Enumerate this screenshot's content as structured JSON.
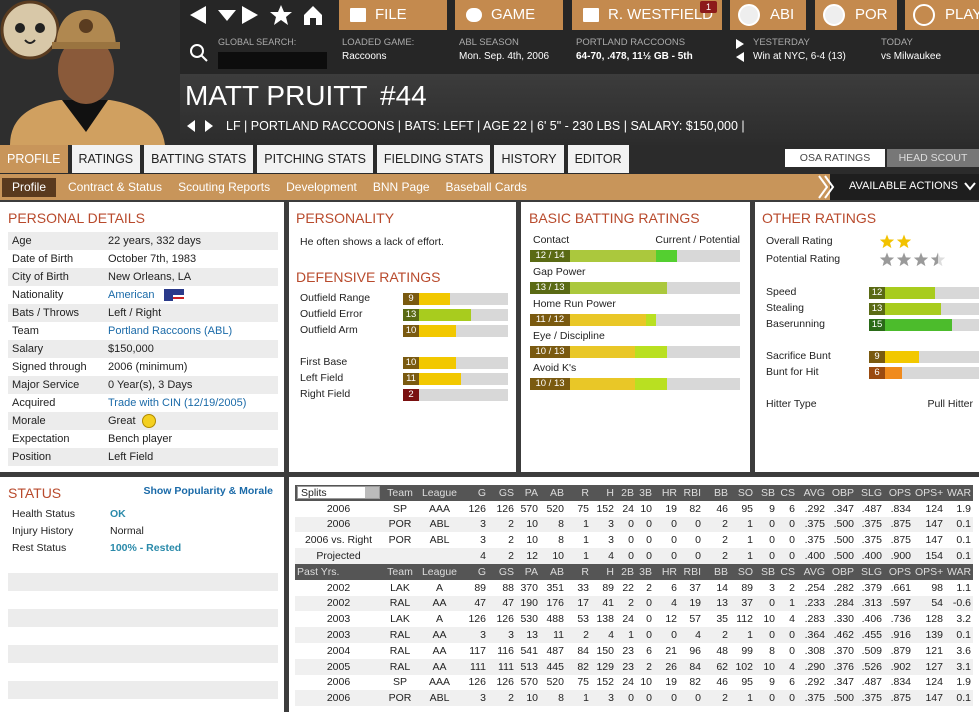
{
  "header": {
    "nav": [
      "FILE",
      "GAME",
      "R. WESTFIELD",
      "ABI",
      "POR",
      "PLAY"
    ],
    "badge": "1",
    "search_label": "GLOBAL SEARCH:",
    "info": [
      {
        "label": "LOADED GAME:",
        "value": "Raccoons"
      },
      {
        "label": "ABL SEASON",
        "value": "Mon. Sep. 4th, 2006"
      },
      {
        "label": "PORTLAND RACCOONS",
        "value": "64-70, .478, 11½ GB - 5th"
      },
      {
        "label": "YESTERDAY",
        "value": "Win at NYC, 6-4 (13)"
      },
      {
        "label": "TODAY",
        "value": "vs Milwaukee"
      }
    ]
  },
  "player": {
    "name": "MATT PRUITT",
    "number": "#44",
    "info": "LF | PORTLAND RACCOONS | BATS: LEFT | AGE 22 | 6' 5\" - 230 LBS | SALARY: $150,000 |"
  },
  "tabs": [
    "PROFILE",
    "RATINGS",
    "BATTING STATS",
    "PITCHING STATS",
    "FIELDING STATS",
    "HISTORY",
    "EDITOR"
  ],
  "scout_toggle": [
    "OSA RATINGS",
    "HEAD SCOUT"
  ],
  "subtabs": [
    "Profile",
    "Contract & Status",
    "Scouting Reports",
    "Development",
    "BNN Page",
    "Baseball Cards"
  ],
  "actions": "AVAILABLE ACTIONS",
  "personal_details": {
    "title": "PERSONAL DETAILS",
    "rows": [
      [
        "Age",
        "22 years, 332 days"
      ],
      [
        "Date of Birth",
        "October 7th, 1983"
      ],
      [
        "City of Birth",
        "New Orleans, LA"
      ],
      [
        "Nationality",
        "American"
      ],
      [
        "Bats / Throws",
        "Left / Right"
      ],
      [
        "Team",
        "Portland Raccoons (ABL)"
      ],
      [
        "Salary",
        "$150,000"
      ],
      [
        "Signed through",
        "2006 (minimum)"
      ],
      [
        "Major Service",
        "0 Year(s), 3 Days"
      ],
      [
        "Acquired",
        "Trade with CIN (12/19/2005)"
      ],
      [
        "Morale",
        "Great"
      ],
      [
        "Expectation",
        "Bench player"
      ],
      [
        "Position",
        "Left Field"
      ]
    ]
  },
  "personality": {
    "title": "PERSONALITY",
    "text": "He often shows a lack of effort."
  },
  "defensive": {
    "title": "DEFENSIVE RATINGS",
    "scale_max": 20,
    "groups": [
      [
        {
          "name": "Outfield Range",
          "value": 9
        },
        {
          "name": "Outfield Error",
          "value": 13
        },
        {
          "name": "Outfield Arm",
          "value": 10
        }
      ],
      [
        {
          "name": "First Base",
          "value": 10
        },
        {
          "name": "Left Field",
          "value": 11
        },
        {
          "name": "Right Field",
          "value": 2
        }
      ]
    ]
  },
  "batting": {
    "title": "BASIC BATTING RATINGS",
    "legend": "Current / Potential",
    "scale_max": 20,
    "rows": [
      {
        "name": "Contact",
        "current": 12,
        "potential": 14,
        "label": "12 / 14"
      },
      {
        "name": "Gap Power",
        "current": 13,
        "potential": 13,
        "label": "13 / 13"
      },
      {
        "name": "Home Run Power",
        "current": 11,
        "potential": 12,
        "label": "11 / 12"
      },
      {
        "name": "Eye / Discipline",
        "current": 10,
        "potential": 13,
        "label": "10 / 13"
      },
      {
        "name": "Avoid K's",
        "current": 10,
        "potential": 13,
        "label": "10 / 13"
      }
    ]
  },
  "other": {
    "title": "OTHER RATINGS",
    "scale_max": 20,
    "stars": [
      {
        "name": "Overall Rating",
        "value": 2,
        "color": "#f2c200"
      },
      {
        "name": "Potential Rating",
        "value": 3.5,
        "color": "#9a9a9a"
      }
    ],
    "groups": [
      [
        {
          "name": "Speed",
          "value": 12
        },
        {
          "name": "Stealing",
          "value": 13
        },
        {
          "name": "Baserunning",
          "value": 15
        }
      ],
      [
        {
          "name": "Sacrifice Bunt",
          "value": 9
        },
        {
          "name": "Bunt for Hit",
          "value": 6
        }
      ]
    ],
    "hitter_type": {
      "name": "Hitter Type",
      "value": "Pull Hitter"
    }
  },
  "status": {
    "title": "STATUS",
    "link": "Show Popularity & Morale",
    "rows": [
      [
        "Health Status",
        "OK"
      ],
      [
        "Injury History",
        "Normal"
      ],
      [
        "Rest Status",
        "100% - Rested"
      ]
    ]
  },
  "stats": {
    "columns": [
      "Splits",
      "Team",
      "League",
      "G",
      "GS",
      "PA",
      "AB",
      "R",
      "H",
      "2B",
      "3B",
      "HR",
      "RBI",
      "BB",
      "SO",
      "SB",
      "CS",
      "AVG",
      "OBP",
      "SLG",
      "OPS",
      "OPS+",
      "WAR"
    ],
    "rows": [
      [
        "2006",
        "SP",
        "AAA",
        "126",
        "126",
        "570",
        "520",
        "75",
        "152",
        "24",
        "10",
        "19",
        "82",
        "46",
        "95",
        "9",
        "6",
        ".292",
        ".347",
        ".487",
        ".834",
        "124",
        "1.9"
      ],
      [
        "2006",
        "POR",
        "ABL",
        "3",
        "2",
        "10",
        "8",
        "1",
        "3",
        "0",
        "0",
        "0",
        "0",
        "2",
        "1",
        "0",
        "0",
        ".375",
        ".500",
        ".375",
        ".875",
        "147",
        "0.1"
      ],
      [
        "2006 vs. Right",
        "POR",
        "ABL",
        "3",
        "2",
        "10",
        "8",
        "1",
        "3",
        "0",
        "0",
        "0",
        "0",
        "2",
        "1",
        "0",
        "0",
        ".375",
        ".500",
        ".375",
        ".875",
        "147",
        "0.1"
      ],
      [
        "Projected",
        null,
        null,
        "4",
        "2",
        "12",
        "10",
        "1",
        "4",
        "0",
        "0",
        "0",
        "0",
        "2",
        "1",
        "0",
        "0",
        ".400",
        ".500",
        ".400",
        ".900",
        "154",
        "0.1"
      ]
    ],
    "past_columns": [
      "Past Yrs.",
      "Team",
      "League",
      "G",
      "GS",
      "PA",
      "AB",
      "R",
      "H",
      "2B",
      "3B",
      "HR",
      "RBI",
      "BB",
      "SO",
      "SB",
      "CS",
      "AVG",
      "OBP",
      "SLG",
      "OPS",
      "OPS+",
      "WAR"
    ],
    "past_rows": [
      [
        "2002",
        "LAK",
        "A",
        "89",
        "88",
        "370",
        "351",
        "33",
        "89",
        "22",
        "2",
        "6",
        "37",
        "14",
        "89",
        "3",
        "2",
        ".254",
        ".282",
        ".379",
        ".661",
        "98",
        "1.1"
      ],
      [
        "2002",
        "RAL",
        "AA",
        "47",
        "47",
        "190",
        "176",
        "17",
        "41",
        "2",
        "0",
        "4",
        "19",
        "13",
        "37",
        "0",
        "1",
        ".233",
        ".284",
        ".313",
        ".597",
        "54",
        "-0.6"
      ],
      [
        "2003",
        "LAK",
        "A",
        "126",
        "126",
        "530",
        "488",
        "53",
        "138",
        "24",
        "0",
        "12",
        "57",
        "35",
        "112",
        "10",
        "4",
        ".283",
        ".330",
        ".406",
        ".736",
        "128",
        "3.2"
      ],
      [
        "2003",
        "RAL",
        "AA",
        "3",
        "3",
        "13",
        "11",
        "2",
        "4",
        "1",
        "0",
        "0",
        "4",
        "2",
        "1",
        "0",
        "0",
        ".364",
        ".462",
        ".455",
        ".916",
        "139",
        "0.1"
      ],
      [
        "2004",
        "RAL",
        "AA",
        "117",
        "116",
        "541",
        "487",
        "84",
        "150",
        "23",
        "6",
        "21",
        "96",
        "48",
        "99",
        "8",
        "0",
        ".308",
        ".370",
        ".509",
        ".879",
        "121",
        "3.6"
      ],
      [
        "2005",
        "RAL",
        "AA",
        "111",
        "111",
        "513",
        "445",
        "82",
        "129",
        "23",
        "2",
        "26",
        "84",
        "62",
        "102",
        "10",
        "4",
        ".290",
        ".376",
        ".526",
        ".902",
        "127",
        "3.1"
      ],
      [
        "2006",
        "SP",
        "AAA",
        "126",
        "126",
        "570",
        "520",
        "75",
        "152",
        "24",
        "10",
        "19",
        "82",
        "46",
        "95",
        "9",
        "6",
        ".292",
        ".347",
        ".487",
        ".834",
        "124",
        "1.9"
      ],
      [
        "2006",
        "POR",
        "ABL",
        "3",
        "2",
        "10",
        "8",
        "1",
        "3",
        "0",
        "0",
        "0",
        "0",
        "2",
        "1",
        "0",
        "0",
        ".375",
        ".500",
        ".375",
        ".875",
        "147",
        "0.1"
      ]
    ]
  }
}
